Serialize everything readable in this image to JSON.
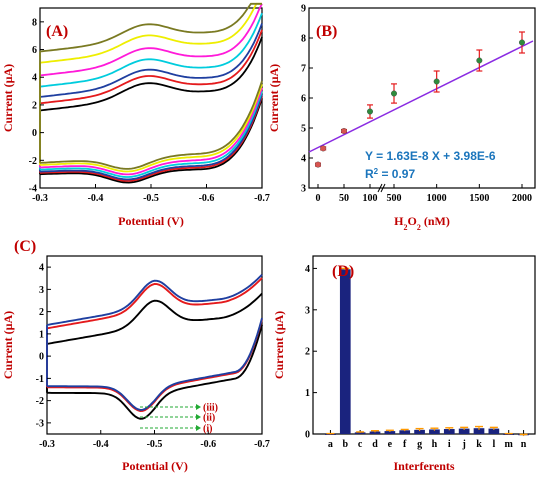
{
  "chart_data": [
    {
      "type": "line",
      "panel": "(A)",
      "xlabel": "Potential (V)",
      "ylabel": "Current (µA)",
      "xlim": [
        -0.3,
        -0.7
      ],
      "ylim": [
        -4,
        9
      ],
      "xticks": [
        "-0.3",
        "-0.4",
        "-0.5",
        "-0.6",
        "-0.7"
      ],
      "yticks": [
        "-4",
        "-2",
        "0",
        "2",
        "4",
        "6",
        "8"
      ],
      "series": [
        {
          "color": "#000000",
          "shift": 0.0
        },
        {
          "color": "#e41a1c",
          "shift": 0.45
        },
        {
          "color": "#1f3fa0",
          "shift": 0.85
        },
        {
          "color": "#00ccdd",
          "shift": 1.5
        },
        {
          "color": "#ff1ad9",
          "shift": 2.2
        },
        {
          "color": "#eeee00",
          "shift": 3.0
        },
        {
          "color": "#7a7a22",
          "shift": 3.7
        }
      ]
    },
    {
      "type": "scatter",
      "panel": "(B)",
      "xlabel_main": "H",
      "xlabel_sub1": "2",
      "xlabel_mid": "O",
      "xlabel_sub2": "2",
      "xlabel_tail": " (nM)",
      "ylabel": "Current (µA)",
      "ylim": [
        3,
        9
      ],
      "xticks": [
        "0",
        "50",
        "100",
        "500",
        "1000",
        "1500",
        "2000"
      ],
      "yticks": [
        "3",
        "4",
        "5",
        "6",
        "7",
        "8",
        "9"
      ],
      "points": [
        {
          "x": 0,
          "y": 3.78,
          "err": 0.05,
          "color": "#d9534f"
        },
        {
          "x": 10,
          "y": 4.32,
          "err": 0.05,
          "color": "#d9534f"
        },
        {
          "x": 50,
          "y": 4.9,
          "err": 0.05,
          "color": "#d9534f"
        },
        {
          "x": 100,
          "y": 5.55,
          "err": 0.22,
          "color": "#2e8b3d"
        },
        {
          "x": 500,
          "y": 6.15,
          "err": 0.32,
          "color": "#2e8b3d"
        },
        {
          "x": 1000,
          "y": 6.55,
          "err": 0.35,
          "color": "#2e8b3d"
        },
        {
          "x": 1500,
          "y": 7.25,
          "err": 0.35,
          "color": "#2e8b3d"
        },
        {
          "x": 2000,
          "y": 7.85,
          "err": 0.35,
          "color": "#2e8b3d"
        }
      ],
      "fit": {
        "y_start": 4.2,
        "y_end": 7.9,
        "color": "#8a2be2"
      },
      "equation": "Y = 1.63E-8 X + 3.98E-6",
      "r2_main": "R",
      "r2_sup": "2",
      "r2_tail": " = 0.97"
    },
    {
      "type": "line",
      "panel": "(C)",
      "xlabel": "Potential (V)",
      "ylabel": "Current (µA)",
      "xlim": [
        -0.3,
        -0.7
      ],
      "ylim": [
        -3.5,
        4.5
      ],
      "xticks": [
        "-0.3",
        "-0.4",
        "-0.5",
        "-0.6",
        "-0.7"
      ],
      "yticks": [
        "-3",
        "-2",
        "-1",
        "0",
        "1",
        "2",
        "3",
        "4"
      ],
      "series": [
        {
          "name": "(i)",
          "color": "#000000"
        },
        {
          "name": "(ii)",
          "color": "#e41a1c"
        },
        {
          "name": "(iii)",
          "color": "#1f3fa0"
        }
      ],
      "annotations": [
        "(iii)",
        "(ii)",
        "(i)"
      ]
    },
    {
      "type": "bar",
      "panel": "(D)",
      "xlabel": "Interferents",
      "ylabel": "Current (µA)",
      "ylim": [
        0,
        4.3
      ],
      "yticks": [
        "0",
        "1",
        "2",
        "3",
        "4"
      ],
      "categories": [
        "a",
        "b",
        "c",
        "d",
        "e",
        "f",
        "g",
        "h",
        "i",
        "j",
        "k",
        "l",
        "m",
        "n"
      ],
      "values": [
        0.0,
        3.98,
        0.04,
        0.06,
        0.07,
        0.09,
        0.1,
        0.11,
        0.12,
        0.13,
        0.14,
        0.13,
        0.0,
        -0.03
      ],
      "errors": [
        0.01,
        0.02,
        0.01,
        0.02,
        0.02,
        0.02,
        0.03,
        0.03,
        0.03,
        0.03,
        0.04,
        0.03,
        0.01,
        0.02
      ],
      "bar_color": "#1a237e",
      "err_color": "#ff9900"
    }
  ]
}
